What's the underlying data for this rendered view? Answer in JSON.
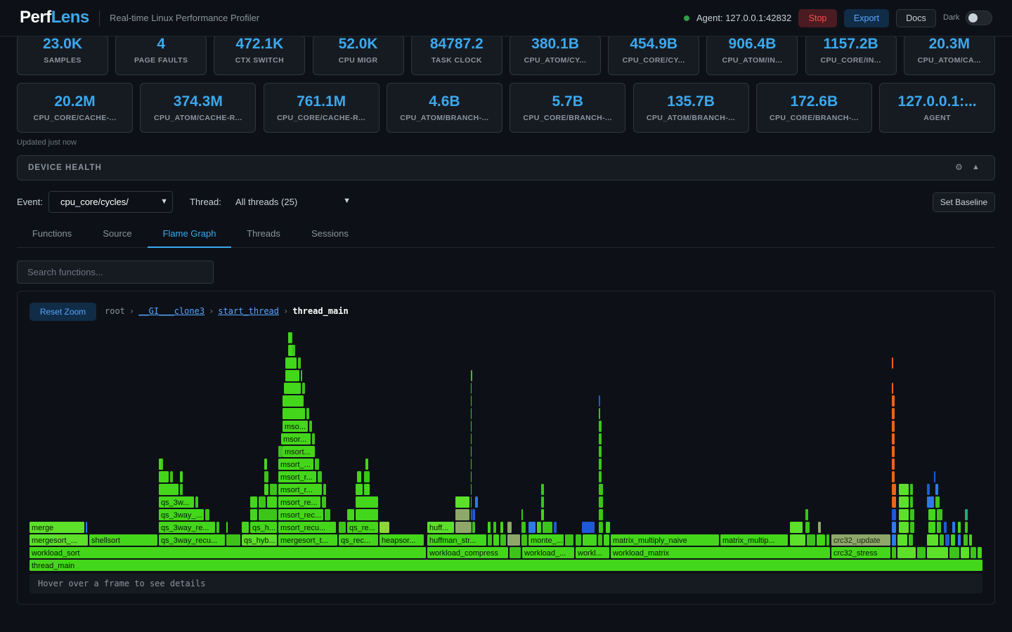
{
  "header": {
    "logo_a": "Perf",
    "logo_b": "Lens",
    "subtitle": "Real-time Linux Performance Profiler",
    "agent": "Agent: 127.0.0.1:42832",
    "stop_label": "Stop",
    "export_label": "Export",
    "docs_label": "Docs",
    "dark_label": "Dark",
    "dark_mode_on": false
  },
  "stats_row1": [
    {
      "value": "23.0K",
      "label": "SAMPLES"
    },
    {
      "value": "4",
      "label": "PAGE FAULTS"
    },
    {
      "value": "472.1K",
      "label": "CTX SWITCH"
    },
    {
      "value": "52.0K",
      "label": "CPU MIGR"
    },
    {
      "value": "84787.2",
      "label": "TASK CLOCK"
    },
    {
      "value": "380.1B",
      "label": "CPU_ATOM/CY..."
    },
    {
      "value": "454.9B",
      "label": "CPU_CORE/CY..."
    },
    {
      "value": "906.4B",
      "label": "CPU_ATOM/IN..."
    },
    {
      "value": "1157.2B",
      "label": "CPU_CORE/IN..."
    },
    {
      "value": "20.3M",
      "label": "CPU_ATOM/CA..."
    }
  ],
  "stats_row2": [
    {
      "value": "20.2M",
      "label": "CPU_CORE/CACHE-..."
    },
    {
      "value": "374.3M",
      "label": "CPU_ATOM/CACHE-R..."
    },
    {
      "value": "761.1M",
      "label": "CPU_CORE/CACHE-R..."
    },
    {
      "value": "4.6B",
      "label": "CPU_ATOM/BRANCH-..."
    },
    {
      "value": "5.7B",
      "label": "CPU_CORE/BRANCH-..."
    },
    {
      "value": "135.7B",
      "label": "CPU_ATOM/BRANCH-..."
    },
    {
      "value": "172.6B",
      "label": "CPU_CORE/BRANCH-..."
    },
    {
      "value": "127.0.0.1:...",
      "label": "AGENT"
    }
  ],
  "updated": "Updated just now",
  "device_health": {
    "title": "DEVICE HEALTH",
    "gear_icon": "⚙",
    "collapse_icon": "▲"
  },
  "controls": {
    "event_label": "Event:",
    "event_value": "cpu_core/cycles/",
    "thread_label": "Thread:",
    "thread_value": "All threads (25)",
    "baseline_label": "Set Baseline"
  },
  "tabs": [
    {
      "label": "Functions",
      "active": false
    },
    {
      "label": "Source",
      "active": false
    },
    {
      "label": "Flame Graph",
      "active": true
    },
    {
      "label": "Threads",
      "active": false
    },
    {
      "label": "Sessions",
      "active": false
    }
  ],
  "search": {
    "placeholder": "Search functions..."
  },
  "flame": {
    "reset_label": "Reset Zoom",
    "crumbs": [
      {
        "label": "root",
        "link": false
      },
      {
        "label": "__GI___clone3",
        "link": true
      },
      {
        "label": "start_thread",
        "link": true
      },
      {
        "label": "thread_main",
        "current": true
      }
    ],
    "hint": "Hover over a frame to see details",
    "labels": {
      "thread_main": "thread_main",
      "workload_sort": "workload_sort",
      "workload_compress": "workload_compress",
      "workload_a": "workload_...",
      "workl": "workl...",
      "workload_matrix": "workload_matrix",
      "crc32_stress": "crc32_stress",
      "mergesort_a": "mergesort_...",
      "shellsort": "shellsort",
      "qs_3way_recu": "qs_3way_recu...",
      "qs_hyb": "qs_hyb...",
      "mergesort_t": "mergesort_t...",
      "qs_rec": "qs_rec...",
      "heapsor": "heapsor...",
      "huffman_str": "huffman_str...",
      "monte": "monte_...",
      "matrix_multiply_naive": "matrix_multiply_naive",
      "matrix_multip": "matrix_multip...",
      "crc32_update": "crc32_update",
      "merge": "merge",
      "qs_3way_re": "qs_3way_re...",
      "qs_h": "qs_h...",
      "msort_recu": "msort_recu...",
      "qs_re": "qs_re...",
      "huff": "huff...",
      "qs_3way_b": "qs_3way_...",
      "msort_rec": "msort_rec...",
      "qs_3w": "qs_3w...",
      "msort_re": "msort_re...",
      "msort_r1": "msort_r...",
      "msort_r2": "msort_r...",
      "msort_a": "msort_...",
      "msort_b": "msort...",
      "msor": "msor...",
      "mso": "mso..."
    }
  },
  "colors": {
    "accent": "#3ba9ee",
    "bg": "#0d1117",
    "panel": "#161b22",
    "border": "#30363d",
    "flame_green": "#44d61a",
    "stop_red": "#f85149",
    "agent_ok": "#2ea043"
  }
}
